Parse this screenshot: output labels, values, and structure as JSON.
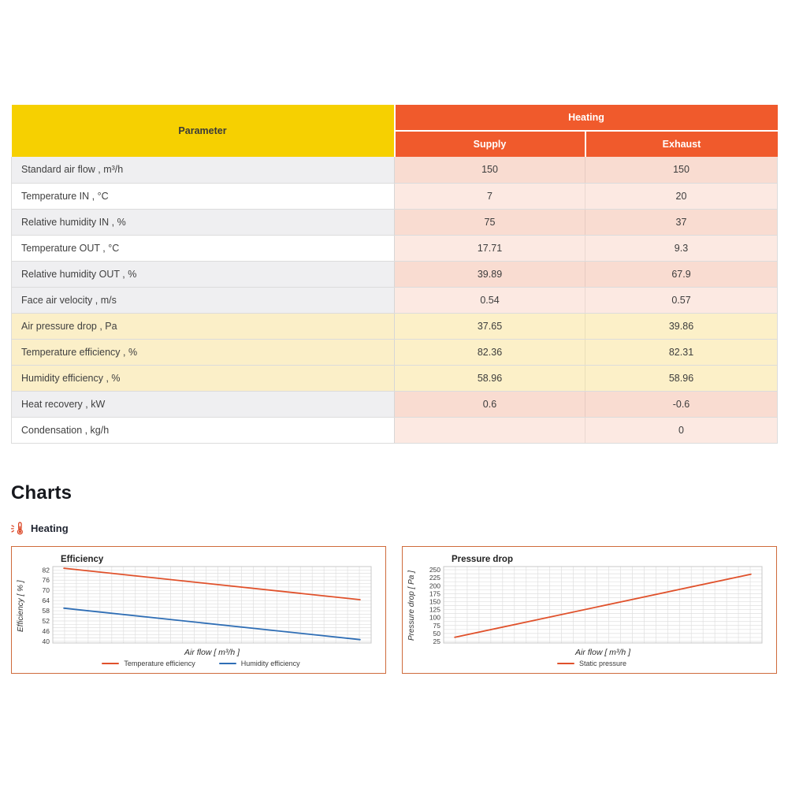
{
  "table": {
    "param_header": "Parameter",
    "group_header": "Heating",
    "col_headers": [
      "Supply",
      "Exhaust"
    ],
    "rows": [
      {
        "label": "Standard air flow , m³/h",
        "supply": "150",
        "exhaust": "150",
        "label_shade": "gray",
        "value_shade": "dark"
      },
      {
        "label": "Temperature IN , °C",
        "supply": "7",
        "exhaust": "20",
        "label_shade": "white",
        "value_shade": "light"
      },
      {
        "label": "Relative humidity IN , %",
        "supply": "75",
        "exhaust": "37",
        "label_shade": "gray",
        "value_shade": "dark"
      },
      {
        "label": "Temperature OUT , °C",
        "supply": "17.71",
        "exhaust": "9.3",
        "label_shade": "white",
        "value_shade": "light"
      },
      {
        "label": "Relative humidity OUT , %",
        "supply": "39.89",
        "exhaust": "67.9",
        "label_shade": "gray",
        "value_shade": "dark"
      },
      {
        "label": "Face air velocity , m/s",
        "supply": "0.54",
        "exhaust": "0.57",
        "label_shade": "gray",
        "value_shade": "light"
      },
      {
        "label": "Air pressure drop , Pa",
        "supply": "37.65",
        "exhaust": "39.86",
        "label_shade": "cream",
        "value_shade": "cream"
      },
      {
        "label": "Temperature efficiency , %",
        "supply": "82.36",
        "exhaust": "82.31",
        "label_shade": "cream",
        "value_shade": "cream"
      },
      {
        "label": "Humidity efficiency , %",
        "supply": "58.96",
        "exhaust": "58.96",
        "label_shade": "cream",
        "value_shade": "cream"
      },
      {
        "label": "Heat recovery , kW",
        "supply": "0.6",
        "exhaust": "-0.6",
        "label_shade": "gray",
        "value_shade": "dark"
      },
      {
        "label": "Condensation , kg/h",
        "supply": "",
        "exhaust": "0",
        "label_shade": "white",
        "value_shade": "light"
      }
    ]
  },
  "charts_section": {
    "heading": "Charts",
    "subheading": "Heating"
  },
  "chart_data": [
    {
      "type": "line",
      "title": "Efficiency",
      "xlabel": "Air flow [ m³/h ]",
      "ylabel": "Efficiency [ % ]",
      "ylim": [
        39,
        84
      ],
      "yticks": [
        40,
        46,
        52,
        58,
        64,
        70,
        76,
        82
      ],
      "minor_grid_step": 2,
      "vertical_gridlines": 27,
      "grid": true,
      "legend_position": "bottom",
      "series": [
        {
          "name": "Temperature efficiency",
          "color": "#e0512b",
          "values": [
            83,
            64.5
          ]
        },
        {
          "name": "Humidity efficiency",
          "color": "#2f6eb5",
          "values": [
            59.5,
            41
          ]
        }
      ]
    },
    {
      "type": "line",
      "title": "Pressure drop",
      "xlabel": "Air flow [ m³/h ]",
      "ylabel": "Pressure drop [ Pa ]",
      "ylim": [
        20,
        260
      ],
      "yticks": [
        25,
        50,
        75,
        100,
        125,
        150,
        175,
        200,
        225,
        250
      ],
      "minor_grid_step": 12.5,
      "vertical_gridlines": 27,
      "grid": true,
      "legend_position": "bottom",
      "series": [
        {
          "name": "Static pressure",
          "color": "#e0512b",
          "values": [
            38,
            236
          ]
        }
      ]
    }
  ],
  "colors": {
    "param_header_bg": "#f6d001",
    "heating_header_bg": "#f05a2c",
    "row_gray": "#efeff1",
    "row_white": "#ffffff",
    "row_cream": "#fbefc8",
    "value_pink_dark": "#f9dcd1",
    "value_pink_light": "#fce9e2",
    "value_cream": "#fcf0c8",
    "card_border": "#cf6b3c",
    "line_red": "#e0512b",
    "line_blue": "#2f6eb5",
    "thermometer_icon": "#dc4a2a"
  }
}
